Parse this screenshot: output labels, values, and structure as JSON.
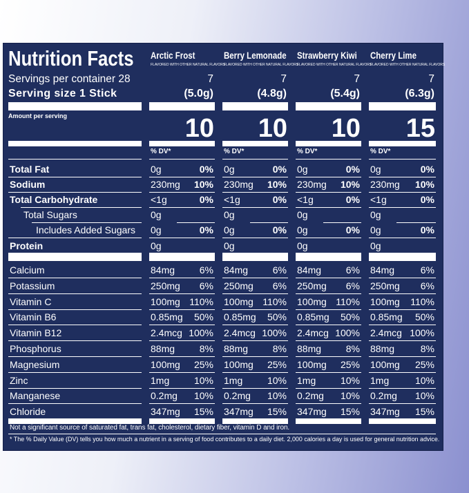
{
  "header": {
    "title": "Nutrition Facts",
    "servings_per_container": "Servings per container 28",
    "serving_size": "Serving size 1 Stick",
    "amount_per_serving": "Amount per serving"
  },
  "flavors": [
    {
      "name": "Arctic Frost",
      "subtitle": "FLAVORED WITH OTHER NATURAL FLAVORS",
      "servings": "7",
      "serving_size": "(5.0g)",
      "calories": "10",
      "dv_header": "% DV*"
    },
    {
      "name": "Berry Lemonade",
      "subtitle": "FLAVORED WITH OTHER NATURAL FLAVORS",
      "servings": "7",
      "serving_size": "(4.8g)",
      "calories": "10",
      "dv_header": "% DV*"
    },
    {
      "name": "Strawberry Kiwi",
      "subtitle": "FLAVORED WITH OTHER NATURAL FLAVORS",
      "servings": "7",
      "serving_size": "(5.4g)",
      "calories": "10",
      "dv_header": "% DV*"
    },
    {
      "name": "Cherry Lime",
      "subtitle": "FLAVORED WITH OTHER NATURAL FLAVORS",
      "servings": "7",
      "serving_size": "(6.3g)",
      "calories": "15",
      "dv_header": "% DV*"
    }
  ],
  "nutrients": [
    {
      "label": "Total Fat",
      "values": [
        [
          "0g",
          "0%"
        ],
        [
          "0g",
          "0%"
        ],
        [
          "0g",
          "0%"
        ],
        [
          "0g",
          "0%"
        ]
      ]
    },
    {
      "label": "Sodium",
      "values": [
        [
          "230mg",
          "10%"
        ],
        [
          "230mg",
          "10%"
        ],
        [
          "230mg",
          "10%"
        ],
        [
          "230mg",
          "10%"
        ]
      ]
    },
    {
      "label": "Total Carbohydrate",
      "values": [
        [
          "<1g",
          "0%"
        ],
        [
          "<1g",
          "0%"
        ],
        [
          "<1g",
          "0%"
        ],
        [
          "<1g",
          "0%"
        ]
      ]
    },
    {
      "label": "Total Sugars",
      "values": [
        [
          "0g",
          null
        ],
        [
          "0g",
          null
        ],
        [
          "0g",
          null
        ],
        [
          "0g",
          null
        ]
      ]
    },
    {
      "label": "Includes Added Sugars",
      "values": [
        [
          "0g",
          "0%"
        ],
        [
          "0g",
          "0%"
        ],
        [
          "0g",
          "0%"
        ],
        [
          "0g",
          "0%"
        ]
      ]
    },
    {
      "label": "Protein",
      "values": [
        [
          "0g",
          null
        ],
        [
          "0g",
          null
        ],
        [
          "0g",
          null
        ],
        [
          "0g",
          null
        ]
      ]
    }
  ],
  "minerals": [
    {
      "label": "Calcium",
      "values": [
        [
          "84mg",
          "6%"
        ],
        [
          "84mg",
          "6%"
        ],
        [
          "84mg",
          "6%"
        ],
        [
          "84mg",
          "6%"
        ]
      ]
    },
    {
      "label": "Potassium",
      "values": [
        [
          "250mg",
          "6%"
        ],
        [
          "250mg",
          "6%"
        ],
        [
          "250mg",
          "6%"
        ],
        [
          "250mg",
          "6%"
        ]
      ]
    },
    {
      "label": "Vitamin C",
      "values": [
        [
          "100mg",
          "110%"
        ],
        [
          "100mg",
          "110%"
        ],
        [
          "100mg",
          "110%"
        ],
        [
          "100mg",
          "110%"
        ]
      ]
    },
    {
      "label": "Vitamin B6",
      "values": [
        [
          "0.85mg",
          "50%"
        ],
        [
          "0.85mg",
          "50%"
        ],
        [
          "0.85mg",
          "50%"
        ],
        [
          "0.85mg",
          "50%"
        ]
      ]
    },
    {
      "label": "Vitamin B12",
      "values": [
        [
          "2.4mcg",
          "100%"
        ],
        [
          "2.4mcg",
          "100%"
        ],
        [
          "2.4mcg",
          "100%"
        ],
        [
          "2.4mcg",
          "100%"
        ]
      ]
    },
    {
      "label": "Phosphorus",
      "values": [
        [
          "88mg",
          "8%"
        ],
        [
          "88mg",
          "8%"
        ],
        [
          "88mg",
          "8%"
        ],
        [
          "88mg",
          "8%"
        ]
      ]
    },
    {
      "label": "Magnesium",
      "values": [
        [
          "100mg",
          "25%"
        ],
        [
          "100mg",
          "25%"
        ],
        [
          "100mg",
          "25%"
        ],
        [
          "100mg",
          "25%"
        ]
      ]
    },
    {
      "label": "Zinc",
      "values": [
        [
          "1mg",
          "10%"
        ],
        [
          "1mg",
          "10%"
        ],
        [
          "1mg",
          "10%"
        ],
        [
          "1mg",
          "10%"
        ]
      ]
    },
    {
      "label": "Manganese",
      "values": [
        [
          "0.2mg",
          "10%"
        ],
        [
          "0.2mg",
          "10%"
        ],
        [
          "0.2mg",
          "10%"
        ],
        [
          "0.2mg",
          "10%"
        ]
      ]
    },
    {
      "label": "Chloride",
      "values": [
        [
          "347mg",
          "15%"
        ],
        [
          "347mg",
          "15%"
        ],
        [
          "347mg",
          "15%"
        ],
        [
          "347mg",
          "15%"
        ]
      ]
    }
  ],
  "footnotes": [
    "Not a significant source of saturated fat, trans fat, cholesterol, dietary fiber, vitamin D and iron.",
    "* The % Daily Value (DV) tells you how much a nutrient in a serving of food contributes to a daily diet. 2,000 calories a day is used for general nutrition advice."
  ]
}
